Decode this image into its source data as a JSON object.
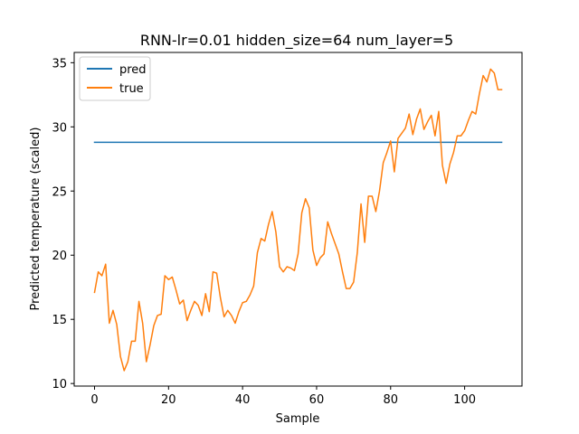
{
  "chart_data": {
    "type": "line",
    "title": "RNN-lr=0.01 hidden_size=64 num_layer=5",
    "xlabel": "Sample",
    "ylabel": "Predicted temperature (scaled)",
    "xlim": [
      -5.5,
      115.5
    ],
    "ylim": [
      9.8,
      35.8
    ],
    "xticks": [
      0,
      20,
      40,
      60,
      80,
      100
    ],
    "yticks": [
      10,
      15,
      20,
      25,
      30,
      35
    ],
    "grid": false,
    "legend_position": "top-left",
    "x": [
      0,
      1,
      2,
      3,
      4,
      5,
      6,
      7,
      8,
      9,
      10,
      11,
      12,
      13,
      14,
      15,
      16,
      17,
      18,
      19,
      20,
      21,
      22,
      23,
      24,
      25,
      26,
      27,
      28,
      29,
      30,
      31,
      32,
      33,
      34,
      35,
      36,
      37,
      38,
      39,
      40,
      41,
      42,
      43,
      44,
      45,
      46,
      47,
      48,
      49,
      50,
      51,
      52,
      53,
      54,
      55,
      56,
      57,
      58,
      59,
      60,
      61,
      62,
      63,
      64,
      65,
      66,
      67,
      68,
      69,
      70,
      71,
      72,
      73,
      74,
      75,
      76,
      77,
      78,
      79,
      80,
      81,
      82,
      83,
      84,
      85,
      86,
      87,
      88,
      89,
      90,
      91,
      92,
      93,
      94,
      95,
      96,
      97,
      98,
      99,
      100,
      101,
      102,
      103,
      104,
      105,
      106,
      107,
      108,
      109,
      110
    ],
    "series": [
      {
        "name": "pred",
        "color": "#1f77b4",
        "values": [
          28.8,
          28.8,
          28.8,
          28.8,
          28.8,
          28.8,
          28.8,
          28.8,
          28.8,
          28.8,
          28.8,
          28.8,
          28.8,
          28.8,
          28.8,
          28.8,
          28.8,
          28.8,
          28.8,
          28.8,
          28.8,
          28.8,
          28.8,
          28.8,
          28.8,
          28.8,
          28.8,
          28.8,
          28.8,
          28.8,
          28.8,
          28.8,
          28.8,
          28.8,
          28.8,
          28.8,
          28.8,
          28.8,
          28.8,
          28.8,
          28.8,
          28.8,
          28.8,
          28.8,
          28.8,
          28.8,
          28.8,
          28.8,
          28.8,
          28.8,
          28.8,
          28.8,
          28.8,
          28.8,
          28.8,
          28.8,
          28.8,
          28.8,
          28.8,
          28.8,
          28.8,
          28.8,
          28.8,
          28.8,
          28.8,
          28.8,
          28.8,
          28.8,
          28.8,
          28.8,
          28.8,
          28.8,
          28.8,
          28.8,
          28.8,
          28.8,
          28.8,
          28.8,
          28.8,
          28.8,
          28.8,
          28.8,
          28.8,
          28.8,
          28.8,
          28.8,
          28.8,
          28.8,
          28.8,
          28.8,
          28.8,
          28.8,
          28.8,
          28.8,
          28.8,
          28.8,
          28.8,
          28.8,
          28.8,
          28.8,
          28.8,
          28.8,
          28.8,
          28.8,
          28.8,
          28.8,
          28.8,
          28.8,
          28.8,
          28.8,
          28.8
        ]
      },
      {
        "name": "true",
        "color": "#ff7f0e",
        "values": [
          17.1,
          18.7,
          18.4,
          19.3,
          14.7,
          15.7,
          14.6,
          12.1,
          11.0,
          11.7,
          13.3,
          13.3,
          16.4,
          14.7,
          11.7,
          13.0,
          14.5,
          15.3,
          15.4,
          18.4,
          18.1,
          18.3,
          17.3,
          16.2,
          16.5,
          14.9,
          15.7,
          16.4,
          16.1,
          15.3,
          17.0,
          15.6,
          18.7,
          18.6,
          16.7,
          15.2,
          15.7,
          15.3,
          14.7,
          15.6,
          16.3,
          16.4,
          16.9,
          17.6,
          20.2,
          21.3,
          21.1,
          22.4,
          23.4,
          21.8,
          19.1,
          18.7,
          19.1,
          19.0,
          18.8,
          20.1,
          23.3,
          24.4,
          23.7,
          20.4,
          19.2,
          19.8,
          20.1,
          22.6,
          21.7,
          20.9,
          20.1,
          18.7,
          17.4,
          17.4,
          17.9,
          20.2,
          24.0,
          21.0,
          24.6,
          24.6,
          23.4,
          25.0,
          27.2,
          28.0,
          28.9,
          26.5,
          29.1,
          29.5,
          29.9,
          31.0,
          29.4,
          30.6,
          31.4,
          29.8,
          30.4,
          30.9,
          29.3,
          31.2,
          27.0,
          25.6,
          27.1,
          28.0,
          29.3,
          29.3,
          29.7,
          30.5,
          31.2,
          31.0,
          32.6,
          34.0,
          33.5,
          34.5,
          34.2,
          32.9,
          32.9
        ]
      }
    ]
  }
}
